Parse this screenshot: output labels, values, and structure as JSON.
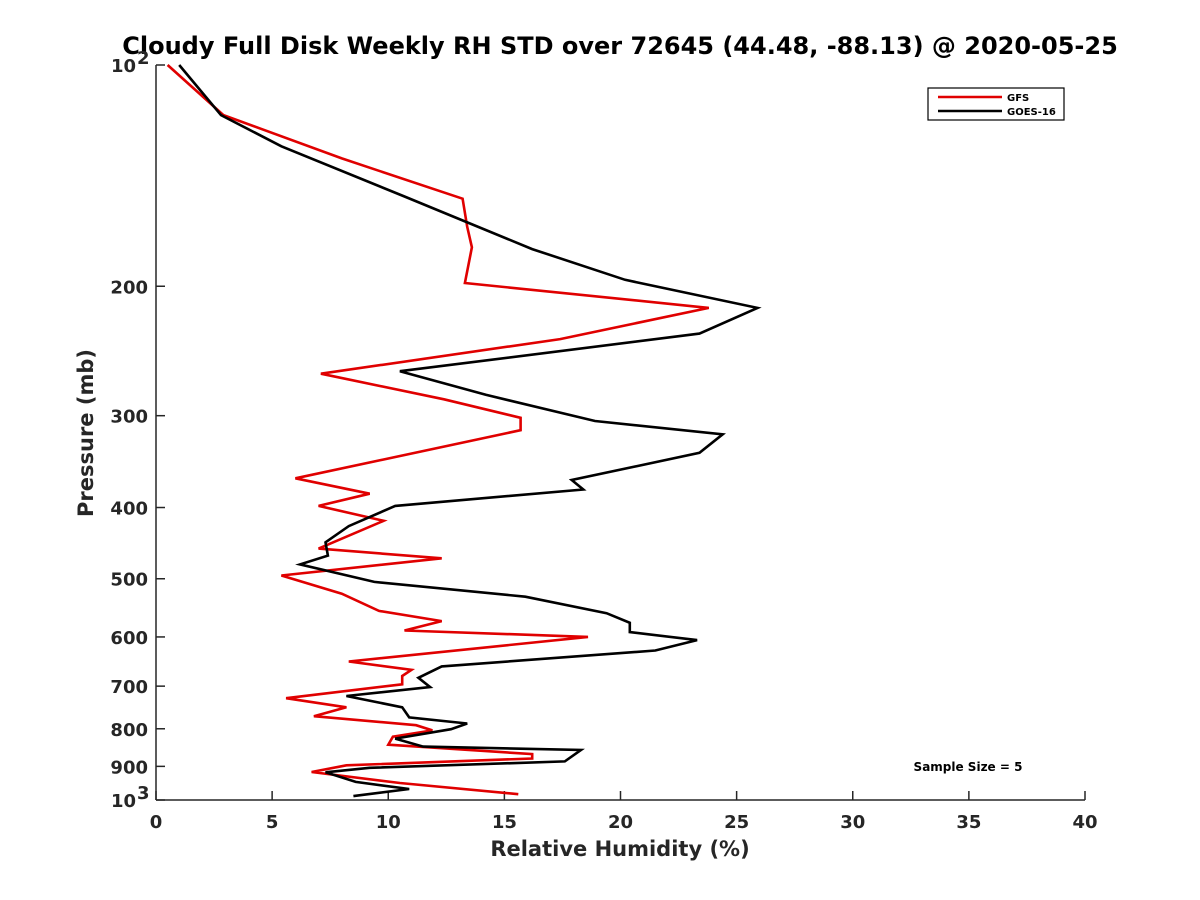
{
  "chart_data": {
    "type": "line",
    "title": "Cloudy Full Disk Weekly RH STD over 72645 (44.48, -88.13) @ 2020-05-25",
    "xlabel": "Relative Humidity (%)",
    "ylabel": "Pressure (mb)",
    "xlim": [
      0,
      40
    ],
    "ylim": [
      100,
      1000
    ],
    "y_scale": "log",
    "y_reversed": true,
    "x_ticks": [
      "0",
      "5",
      "10",
      "15",
      "20",
      "25",
      "30",
      "35",
      "40"
    ],
    "y_ticks": [
      {
        "value": 100,
        "base": "10",
        "exp": "2"
      },
      {
        "value": 200,
        "label": "200"
      },
      {
        "value": 300,
        "label": "300"
      },
      {
        "value": 400,
        "label": "400"
      },
      {
        "value": 500,
        "label": "500"
      },
      {
        "value": 600,
        "label": "600"
      },
      {
        "value": 700,
        "label": "700"
      },
      {
        "value": 800,
        "label": "800"
      },
      {
        "value": 900,
        "label": "900"
      },
      {
        "value": 1000,
        "base": "10",
        "exp": "3"
      }
    ],
    "legend": {
      "placement": "top-right",
      "entries": [
        "GFS",
        "GOES-16"
      ]
    },
    "annotation": "Sample Size = 5",
    "series": [
      {
        "name": "GFS",
        "color": "#e00000",
        "points": [
          [
            0.5,
            100
          ],
          [
            2.9,
            117
          ],
          [
            8.0,
            134
          ],
          [
            13.2,
            152
          ],
          [
            13.4,
            166
          ],
          [
            13.6,
            177
          ],
          [
            13.3,
            198
          ],
          [
            23.8,
            214
          ],
          [
            17.4,
            236
          ],
          [
            7.1,
            263
          ],
          [
            12.4,
            285
          ],
          [
            15.7,
            302
          ],
          [
            15.7,
            314
          ],
          [
            6.0,
            365
          ],
          [
            9.2,
            383
          ],
          [
            7.0,
            398
          ],
          [
            9.8,
            417
          ],
          [
            7.0,
            455
          ],
          [
            12.3,
            469
          ],
          [
            5.4,
            495
          ],
          [
            8.0,
            524
          ],
          [
            9.6,
            553
          ],
          [
            12.3,
            571
          ],
          [
            10.7,
            588
          ],
          [
            18.6,
            600
          ],
          [
            8.3,
            648
          ],
          [
            11.0,
            665
          ],
          [
            10.6,
            678
          ],
          [
            10.6,
            696
          ],
          [
            5.6,
            727
          ],
          [
            8.2,
            748
          ],
          [
            6.8,
            769
          ],
          [
            11.2,
            791
          ],
          [
            11.9,
            804
          ],
          [
            10.2,
            820
          ],
          [
            10.0,
            841
          ],
          [
            16.2,
            866
          ],
          [
            16.2,
            878
          ],
          [
            8.2,
            897
          ],
          [
            6.7,
            916
          ],
          [
            10.5,
            948
          ],
          [
            15.6,
            982
          ]
        ]
      },
      {
        "name": "GOES-16",
        "color": "#000000",
        "points": [
          [
            1.0,
            100
          ],
          [
            2.8,
            117
          ],
          [
            5.4,
            129
          ],
          [
            10.7,
            151
          ],
          [
            16.2,
            178
          ],
          [
            20.2,
            196
          ],
          [
            25.9,
            214
          ],
          [
            23.4,
            232
          ],
          [
            10.5,
            261
          ],
          [
            14.2,
            281
          ],
          [
            18.9,
            305
          ],
          [
            24.4,
            318
          ],
          [
            23.4,
            337
          ],
          [
            17.9,
            367
          ],
          [
            18.4,
            378
          ],
          [
            10.3,
            398
          ],
          [
            8.3,
            424
          ],
          [
            7.3,
            446
          ],
          [
            7.4,
            465
          ],
          [
            6.2,
            478
          ],
          [
            9.4,
            505
          ],
          [
            15.9,
            529
          ],
          [
            19.4,
            557
          ],
          [
            20.4,
            574
          ],
          [
            20.4,
            591
          ],
          [
            23.3,
            606
          ],
          [
            21.5,
            626
          ],
          [
            12.3,
            658
          ],
          [
            11.3,
            682
          ],
          [
            11.8,
            702
          ],
          [
            8.2,
            722
          ],
          [
            10.6,
            748
          ],
          [
            10.9,
            772
          ],
          [
            13.4,
            787
          ],
          [
            12.7,
            801
          ],
          [
            10.3,
            825
          ],
          [
            11.5,
            846
          ],
          [
            18.3,
            855
          ],
          [
            17.6,
            886
          ],
          [
            9.2,
            904
          ],
          [
            7.3,
            917
          ],
          [
            8.6,
            945
          ],
          [
            10.9,
            966
          ],
          [
            8.5,
            988
          ]
        ]
      }
    ]
  }
}
